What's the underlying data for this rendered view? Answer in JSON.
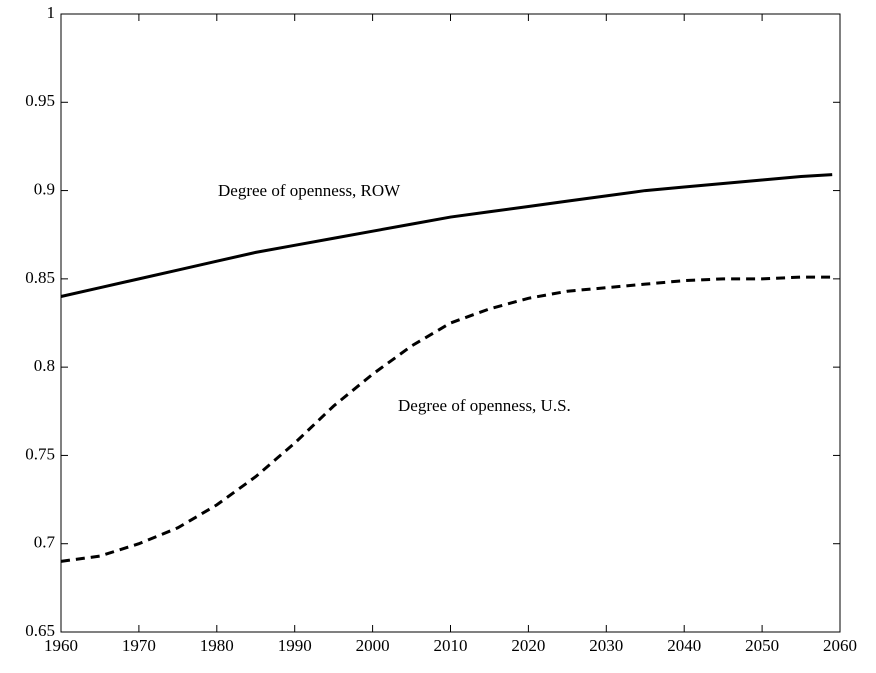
{
  "chart_data": {
    "type": "line",
    "x": [
      1960,
      1965,
      1970,
      1975,
      1980,
      1985,
      1990,
      1995,
      2000,
      2005,
      2010,
      2015,
      2020,
      2025,
      2030,
      2035,
      2040,
      2045,
      2050,
      2055,
      2059
    ],
    "series": [
      {
        "name": "Degree of openness, ROW",
        "color": "#000000",
        "dash": "solid",
        "values": [
          0.84,
          0.845,
          0.85,
          0.855,
          0.86,
          0.865,
          0.869,
          0.873,
          0.877,
          0.881,
          0.885,
          0.888,
          0.891,
          0.894,
          0.897,
          0.9,
          0.902,
          0.904,
          0.906,
          0.908,
          0.909
        ]
      },
      {
        "name": "Degree of openness, U.S.",
        "color": "#000000",
        "dash": "dashed",
        "values": [
          0.69,
          0.693,
          0.7,
          0.709,
          0.722,
          0.738,
          0.757,
          0.778,
          0.796,
          0.812,
          0.825,
          0.833,
          0.839,
          0.843,
          0.845,
          0.847,
          0.849,
          0.85,
          0.85,
          0.851,
          0.851
        ]
      }
    ],
    "xlim": [
      1960,
      2060
    ],
    "xticks": [
      1960,
      1970,
      1980,
      1990,
      2000,
      2010,
      2020,
      2030,
      2040,
      2050,
      2060
    ],
    "ylim": [
      0.65,
      1
    ],
    "yticks": [
      0.65,
      0.7,
      0.75,
      0.8,
      0.85,
      0.9,
      0.95,
      1
    ],
    "grid": false
  }
}
